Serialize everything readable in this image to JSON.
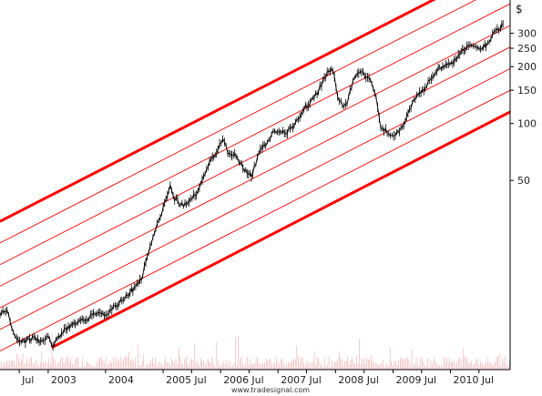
{
  "chart_data": {
    "type": "line",
    "style": "price-bars-with-volume",
    "y_unit": "$",
    "y_scale": "log",
    "ylim": [
      5,
      450
    ],
    "xlim": [
      "2002-03-01",
      "2011-01-15"
    ],
    "y_ticks": [
      300,
      250,
      200,
      150,
      100,
      50
    ],
    "x_ticks": [
      {
        "label": "Jul",
        "date": "2002-07-01"
      },
      {
        "label": "2003",
        "date": "2003-01-01"
      },
      {
        "label": "2004",
        "date": "2004-01-01"
      },
      {
        "label": "2005",
        "date": "2005-01-01"
      },
      {
        "label": "Jul",
        "date": "2005-07-01"
      },
      {
        "label": "2006",
        "date": "2006-01-01"
      },
      {
        "label": "Jul",
        "date": "2006-07-01"
      },
      {
        "label": "2007",
        "date": "2007-01-01"
      },
      {
        "label": "Jul",
        "date": "2007-07-01"
      },
      {
        "label": "2008",
        "date": "2008-01-01"
      },
      {
        "label": "Jul",
        "date": "2008-07-01"
      },
      {
        "label": "2009",
        "date": "2009-01-01"
      },
      {
        "label": "Jul",
        "date": "2009-07-01"
      },
      {
        "label": "2010",
        "date": "2010-01-01"
      },
      {
        "label": "Jul",
        "date": "2010-07-01"
      }
    ],
    "series": [
      {
        "type": "price",
        "color": "#000000",
        "points": [
          [
            "2002-03-01",
            10.0
          ],
          [
            "2002-04-15",
            10.5
          ],
          [
            "2002-05-15",
            8.5
          ],
          [
            "2002-06-15",
            7.2
          ],
          [
            "2002-08-01",
            7.0
          ],
          [
            "2002-10-01",
            7.3
          ],
          [
            "2002-12-01",
            7.0
          ],
          [
            "2003-01-01",
            7.4
          ],
          [
            "2003-02-01",
            6.5
          ],
          [
            "2003-03-01",
            7.4
          ],
          [
            "2003-05-01",
            8.3
          ],
          [
            "2003-07-01",
            8.8
          ],
          [
            "2003-09-01",
            9.3
          ],
          [
            "2003-11-01",
            10.0
          ],
          [
            "2004-01-01",
            9.6
          ],
          [
            "2004-03-01",
            10.8
          ],
          [
            "2004-05-01",
            12.0
          ],
          [
            "2004-07-01",
            13.5
          ],
          [
            "2004-08-15",
            15.0
          ],
          [
            "2004-10-01",
            21.0
          ],
          [
            "2004-11-15",
            28.0
          ],
          [
            "2005-01-01",
            36.0
          ],
          [
            "2005-02-15",
            46.0
          ],
          [
            "2005-03-15",
            40.0
          ],
          [
            "2005-05-01",
            37.0
          ],
          [
            "2005-06-15",
            39.0
          ],
          [
            "2005-08-01",
            43.0
          ],
          [
            "2005-09-15",
            52.0
          ],
          [
            "2005-11-01",
            64.0
          ],
          [
            "2005-12-15",
            74.0
          ],
          [
            "2006-01-15",
            84.0
          ],
          [
            "2006-02-15",
            70.0
          ],
          [
            "2006-04-01",
            68.0
          ],
          [
            "2006-06-01",
            58.0
          ],
          [
            "2006-07-15",
            52.0
          ],
          [
            "2006-09-01",
            70.0
          ],
          [
            "2006-10-15",
            78.0
          ],
          [
            "2006-12-01",
            89.0
          ],
          [
            "2007-01-15",
            91.0
          ],
          [
            "2007-03-01",
            90.0
          ],
          [
            "2007-05-01",
            104.0
          ],
          [
            "2007-06-15",
            120.0
          ],
          [
            "2007-08-01",
            133.0
          ],
          [
            "2007-09-15",
            150.0
          ],
          [
            "2007-11-01",
            180.0
          ],
          [
            "2007-12-15",
            195.0
          ],
          [
            "2008-01-15",
            140.0
          ],
          [
            "2008-02-15",
            125.0
          ],
          [
            "2008-03-15",
            130.0
          ],
          [
            "2008-05-01",
            180.0
          ],
          [
            "2008-06-15",
            185.0
          ],
          [
            "2008-08-01",
            175.0
          ],
          [
            "2008-09-15",
            140.0
          ],
          [
            "2008-10-15",
            95.0
          ],
          [
            "2008-11-15",
            92.0
          ],
          [
            "2008-12-15",
            86.0
          ],
          [
            "2009-01-15",
            88.0
          ],
          [
            "2009-03-01",
            95.0
          ],
          [
            "2009-04-15",
            120.0
          ],
          [
            "2009-06-01",
            140.0
          ],
          [
            "2009-07-15",
            150.0
          ],
          [
            "2009-09-01",
            175.0
          ],
          [
            "2009-10-15",
            195.0
          ],
          [
            "2009-12-01",
            205.0
          ],
          [
            "2010-01-15",
            210.0
          ],
          [
            "2010-03-01",
            230.0
          ],
          [
            "2010-04-15",
            255.0
          ],
          [
            "2010-05-15",
            265.0
          ],
          [
            "2010-06-15",
            250.0
          ],
          [
            "2010-08-15",
            260.0
          ],
          [
            "2010-09-15",
            285.0
          ],
          [
            "2010-10-15",
            310.0
          ],
          [
            "2010-11-15",
            320.0
          ],
          [
            "2010-12-01",
            330.0
          ]
        ]
      }
    ],
    "channel": {
      "color": "#ff0000",
      "anchor_date": "2003-01-01",
      "bottom_start": 6.5,
      "top_start": 41.0,
      "growth_per_year": 1.43,
      "inner_lines": 6
    },
    "volume": {
      "color": "#e06060",
      "shape": "histogram"
    }
  },
  "footer": "www.tradesignal.com"
}
